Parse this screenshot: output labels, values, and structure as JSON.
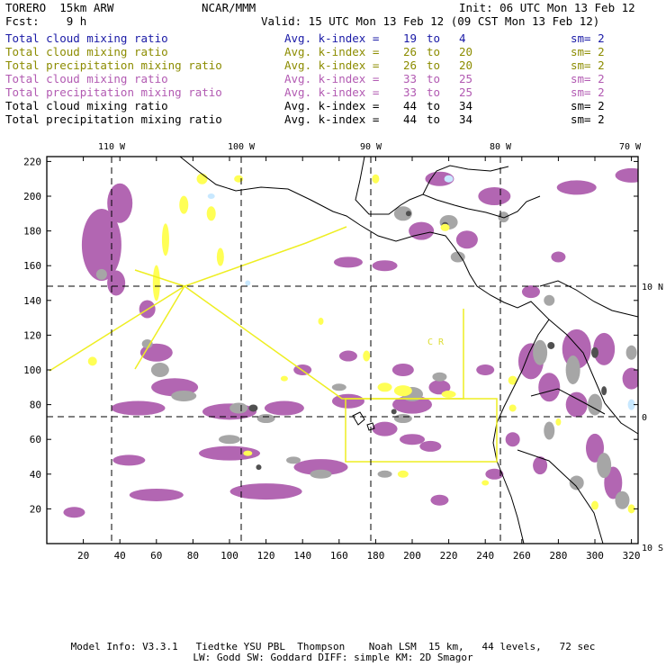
{
  "header": {
    "model": "TORERO  15km ARW",
    "center": "NCAR/MMM",
    "init": "Init: 06 UTC Mon 13 Feb 12",
    "fcst": "Fcst:    9 h",
    "valid": "Valid: 15 UTC Mon 13 Feb 12 (09 CST Mon 13 Feb 12)"
  },
  "legend": [
    {
      "field": "Total cloud mixing ratio",
      "index": "Avg. k-index =",
      "from": "19",
      "to_word": "to",
      "to": "4",
      "sm": "sm= 2",
      "color": "#1a1aa6"
    },
    {
      "field": "Total cloud mixing ratio",
      "index": "Avg. k-index =",
      "from": "26",
      "to_word": "to",
      "to": "20",
      "sm": "sm= 2",
      "color": "#8c8c00"
    },
    {
      "field": "Total precipitation mixing ratio",
      "index": "Avg. k-index =",
      "from": "26",
      "to_word": "to",
      "to": "20",
      "sm": "sm= 2",
      "color": "#8c8c00"
    },
    {
      "field": "Total cloud mixing ratio",
      "index": "Avg. k-index =",
      "from": "33",
      "to_word": "to",
      "to": "25",
      "sm": "sm= 2",
      "color": "#b25ab2"
    },
    {
      "field": "Total precipitation mixing ratio",
      "index": "Avg. k-index =",
      "from": "33",
      "to_word": "to",
      "to": "25",
      "sm": "sm= 2",
      "color": "#b25ab2"
    },
    {
      "field": "Total cloud mixing ratio",
      "index": "Avg. k-index =",
      "from": "44",
      "to_word": "to",
      "to": "34",
      "sm": "sm= 2",
      "color": "#000000"
    },
    {
      "field": "Total precipitation mixing ratio",
      "index": "Avg. k-index =",
      "from": "44",
      "to_word": "to",
      "to": "34",
      "sm": "sm= 2",
      "color": "#000000"
    }
  ],
  "map": {
    "lon_labels": [
      "110 W",
      "100 W",
      "90 W",
      "80 W",
      "70 W"
    ],
    "lat_labels": [
      "10 N",
      "0",
      "10 S"
    ],
    "x_ticks": [
      "20",
      "40",
      "60",
      "80",
      "100",
      "120",
      "140",
      "160",
      "180",
      "200",
      "220",
      "240",
      "260",
      "280",
      "300",
      "320"
    ],
    "y_ticks": [
      "20",
      "40",
      "60",
      "80",
      "100",
      "120",
      "140",
      "160",
      "180",
      "200",
      "220"
    ],
    "region_label": "C R",
    "colors": {
      "cloud_high": "#b266b2",
      "cloud_low": "#a6a6a6",
      "precip_dark": "#505050",
      "low_level": "#ffff55",
      "ice": "#c8e8ff",
      "coast": "#000000",
      "box": "#eeee22"
    }
  },
  "footer": {
    "line1": "Model Info: V3.3.1   Tiedtke YSU PBL  Thompson    Noah LSM  15 km,   44 levels,   72 sec",
    "line2": "LW: Godd SW: Goddard DIFF: simple KM: 2D Smagor"
  }
}
